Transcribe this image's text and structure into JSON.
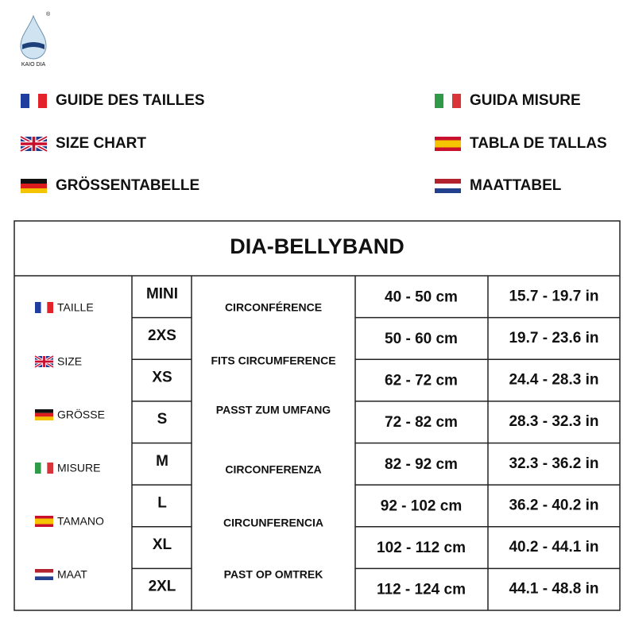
{
  "logo": {
    "brand": "KAIO DIA",
    "mark": "®"
  },
  "guides": {
    "left": [
      "GUIDE DES TAILLES",
      "SIZE CHART",
      "GRÖSSENTABELLE"
    ],
    "right": [
      "GUIDA MISURE",
      "TABLA DE TALLAS",
      "MAATTABEL"
    ]
  },
  "table": {
    "title": "DIA-BELLYBAND",
    "size_labels": [
      "TAILLE",
      "SIZE",
      "GRÖSSE",
      "MISURE",
      "TAMANO",
      "MAAT"
    ],
    "measure_labels": [
      "CIRCONFÉRENCE",
      "FITS CIRCUMFERENCE",
      "PASST ZUM UMFANG",
      "CIRCONFERENZA",
      "CIRCUNFERENCIA",
      "PAST OP OMTREK"
    ],
    "rows": [
      [
        "MINI",
        "40 - 50 cm",
        "15.7 - 19.7 in"
      ],
      [
        "2XS",
        "50 - 60 cm",
        "19.7 - 23.6 in"
      ],
      [
        "XS",
        "62 - 72 cm",
        "24.4 - 28.3 in"
      ],
      [
        "S",
        "72 - 82 cm",
        "28.3 - 32.3 in"
      ],
      [
        "M",
        "82 - 92 cm",
        "32.3 - 36.2 in"
      ],
      [
        "L",
        "92 - 102 cm",
        "36.2 - 40.2 in"
      ],
      [
        "XL",
        "102 - 112 cm",
        "40.2 - 44.1 in"
      ],
      [
        "2XL",
        "112 - 124 cm",
        "44.1 - 48.8 in"
      ]
    ]
  }
}
